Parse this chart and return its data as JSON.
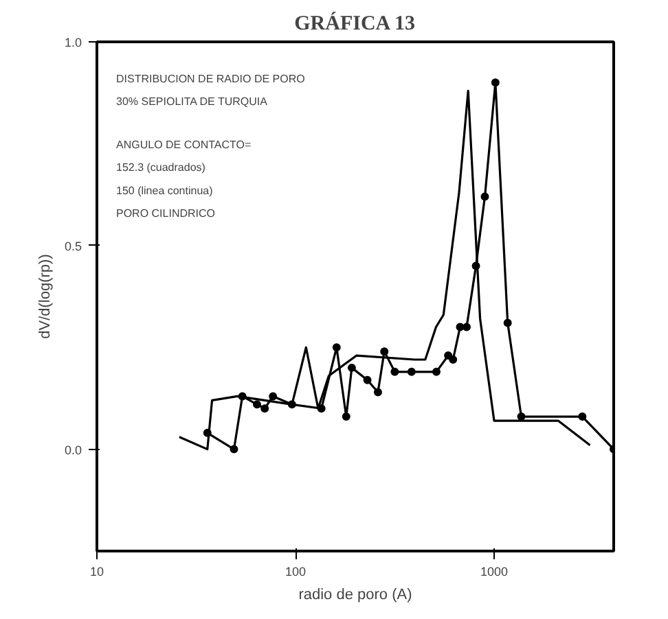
{
  "chart_data": {
    "type": "line",
    "title": "GRÁFICA 13",
    "xlabel": "radio de poro (A)",
    "ylabel": "dV/d(log(rp))",
    "annotations": [
      "DISTRIBUCION DE RADIO DE PORO",
      "30% SEPIOLITA DE TURQUIA",
      "ANGULO DE CONTACTO=",
      "152.3 (cuadrados)",
      "150 (linea continua)",
      "PORO CILINDRICO"
    ],
    "log": "x",
    "xlim": [
      10,
      4000
    ],
    "xticks": [
      10,
      100,
      1000
    ],
    "ylim": [
      -0.25,
      1.0
    ],
    "yticks": [
      {
        "value": 0,
        "label": "0.0"
      },
      0.5,
      {
        "value": 1,
        "label": "1.0"
      }
    ],
    "grid": false,
    "series": [
      {
        "color": "#000000",
        "marker": "circle",
        "x": [
          36,
          49,
          54,
          64,
          70,
          77,
          96,
          135,
          161,
          180,
          192,
          230,
          260,
          280,
          316,
          384,
          512,
          587,
          621,
          674,
          727,
          810,
          898,
          1015,
          1170,
          1370,
          2780,
          4000
        ],
        "values": [
          0.04,
          0.0,
          0.13,
          0.11,
          0.1,
          0.13,
          0.11,
          0.1,
          0.25,
          0.08,
          0.2,
          0.17,
          0.14,
          0.24,
          0.19,
          0.19,
          0.19,
          0.23,
          0.22,
          0.3,
          0.3,
          0.45,
          0.62,
          0.9,
          0.31,
          0.08,
          0.08,
          0.0
        ]
      },
      {
        "color": "#000000",
        "marker": "none",
        "x": [
          26,
          36,
          38,
          51,
          96,
          113,
          130,
          147,
          203,
          398,
          450,
          510,
          556,
          666,
          740,
          850,
          1000,
          2100,
          3040
        ],
        "values": [
          0.03,
          0.0,
          0.12,
          0.13,
          0.11,
          0.25,
          0.1,
          0.18,
          0.23,
          0.22,
          0.22,
          0.3,
          0.33,
          0.63,
          0.88,
          0.32,
          0.07,
          0.07,
          0.01
        ]
      }
    ]
  }
}
